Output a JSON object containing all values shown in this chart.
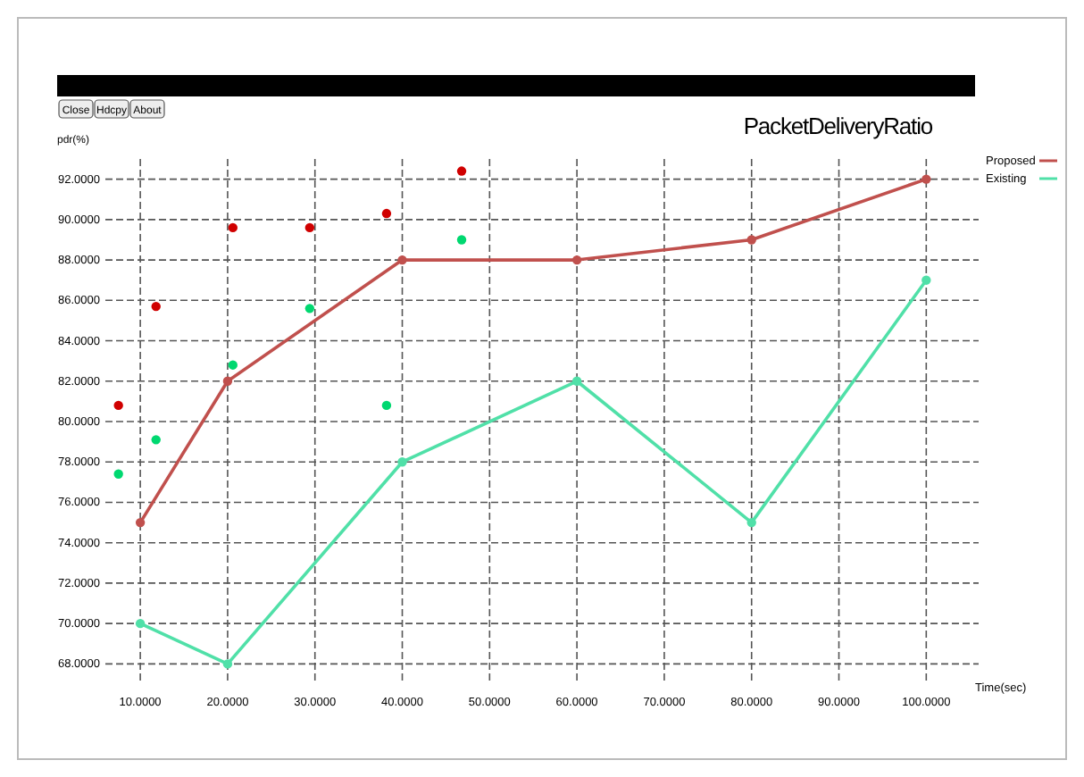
{
  "chart_data": {
    "type": "line",
    "title": "PacketDeliveryRatio",
    "xlabel": "Time(sec)",
    "ylabel": "pdr(%)",
    "annotations": [
      "Close",
      "Hdcpy",
      "About"
    ],
    "xlim": [
      6,
      106
    ],
    "ylim": [
      67,
      93
    ],
    "xticks": [
      {
        "value": 10,
        "label": "10.0000"
      },
      {
        "value": 20,
        "label": "20.0000"
      },
      {
        "value": 30,
        "label": "30.0000"
      },
      {
        "value": 40,
        "label": "40.0000"
      },
      {
        "value": 50,
        "label": "50.0000"
      },
      {
        "value": 60,
        "label": "60.0000"
      },
      {
        "value": 70,
        "label": "70.0000"
      },
      {
        "value": 80,
        "label": "80.0000"
      },
      {
        "value": 90,
        "label": "90.0000"
      },
      {
        "value": 100,
        "label": "100.0000"
      }
    ],
    "yticks": [
      {
        "value": 68,
        "label": "68.0000"
      },
      {
        "value": 70,
        "label": "70.0000"
      },
      {
        "value": 72,
        "label": "72.0000"
      },
      {
        "value": 74,
        "label": "74.0000"
      },
      {
        "value": 76,
        "label": "76.0000"
      },
      {
        "value": 78,
        "label": "78.0000"
      },
      {
        "value": 80,
        "label": "80.0000"
      },
      {
        "value": 82,
        "label": "82.0000"
      },
      {
        "value": 84,
        "label": "84.0000"
      },
      {
        "value": 86,
        "label": "86.0000"
      },
      {
        "value": 88,
        "label": "88.0000"
      },
      {
        "value": 90,
        "label": "90.0000"
      },
      {
        "value": 92,
        "label": "92.0000"
      }
    ],
    "grid": true,
    "legend": "top right",
    "marker": "circle",
    "line_style": "solid",
    "series": [
      {
        "name": "Proposed",
        "color": "#c0504d",
        "x": [
          10,
          20,
          40,
          60,
          80,
          100
        ],
        "values": [
          75,
          82,
          88,
          88,
          89,
          92
        ]
      },
      {
        "name": "Existing",
        "color": "#50e0a8",
        "x": [
          10,
          20,
          40,
          60,
          80,
          100
        ],
        "values": [
          70,
          68,
          78,
          82,
          75,
          87
        ]
      },
      {
        "type": "scatter",
        "color": "#d00000",
        "x": [
          7.5,
          11.8,
          20.6,
          29.4,
          38.2,
          46.8
        ],
        "values": [
          80.8,
          85.7,
          89.6,
          89.6,
          90.3,
          92.4
        ]
      },
      {
        "type": "scatter",
        "color": "#00d870",
        "x": [
          7.5,
          11.8,
          20.6,
          29.4,
          38.2,
          46.8
        ],
        "values": [
          77.4,
          79.1,
          82.8,
          85.6,
          80.8,
          89
        ]
      }
    ]
  }
}
